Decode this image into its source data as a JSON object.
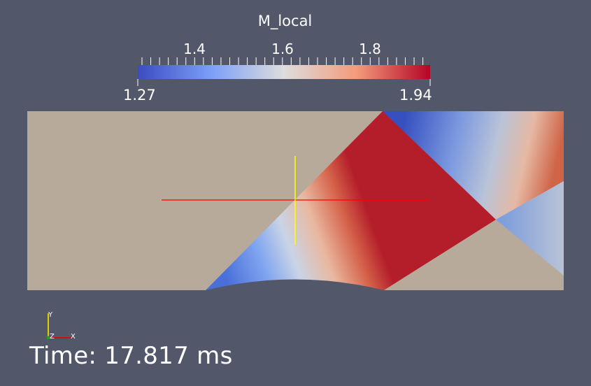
{
  "colorbar": {
    "title": "M_local",
    "min_label": "1.27",
    "max_label": "1.94",
    "range": [
      1.27,
      1.94
    ],
    "tick_labels": [
      "1.4",
      "1.6",
      "1.8"
    ],
    "color_low": "#3b4cc0",
    "color_mid": "#dddddd",
    "color_high": "#b40426"
  },
  "view": {
    "background": "#525769",
    "domain_fill": "#b7aa9a",
    "probe_line_color": "#ff0000",
    "probe_cross_color": "#ffff00"
  },
  "axes": {
    "x": "X",
    "y": "Y",
    "z": "Z"
  },
  "time": {
    "text": "Time: 17.817 ms"
  }
}
